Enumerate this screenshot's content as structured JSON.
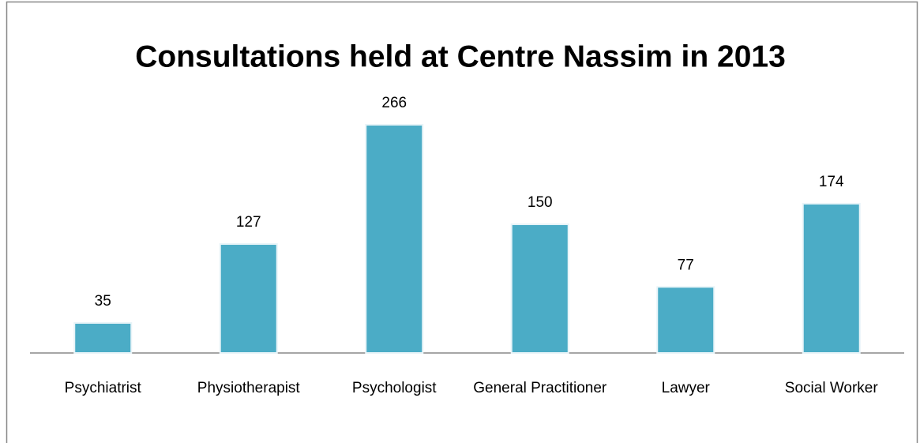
{
  "chart_data": {
    "type": "bar",
    "title": "Consultations held at Centre Nassim in 2013",
    "categories": [
      "Psychiatrist",
      "Physiotherapist",
      "Psychologist",
      "General Practitioner",
      "Lawyer",
      "Social Worker"
    ],
    "values": [
      35,
      127,
      266,
      150,
      77,
      174
    ],
    "color": "#4bacc6"
  }
}
